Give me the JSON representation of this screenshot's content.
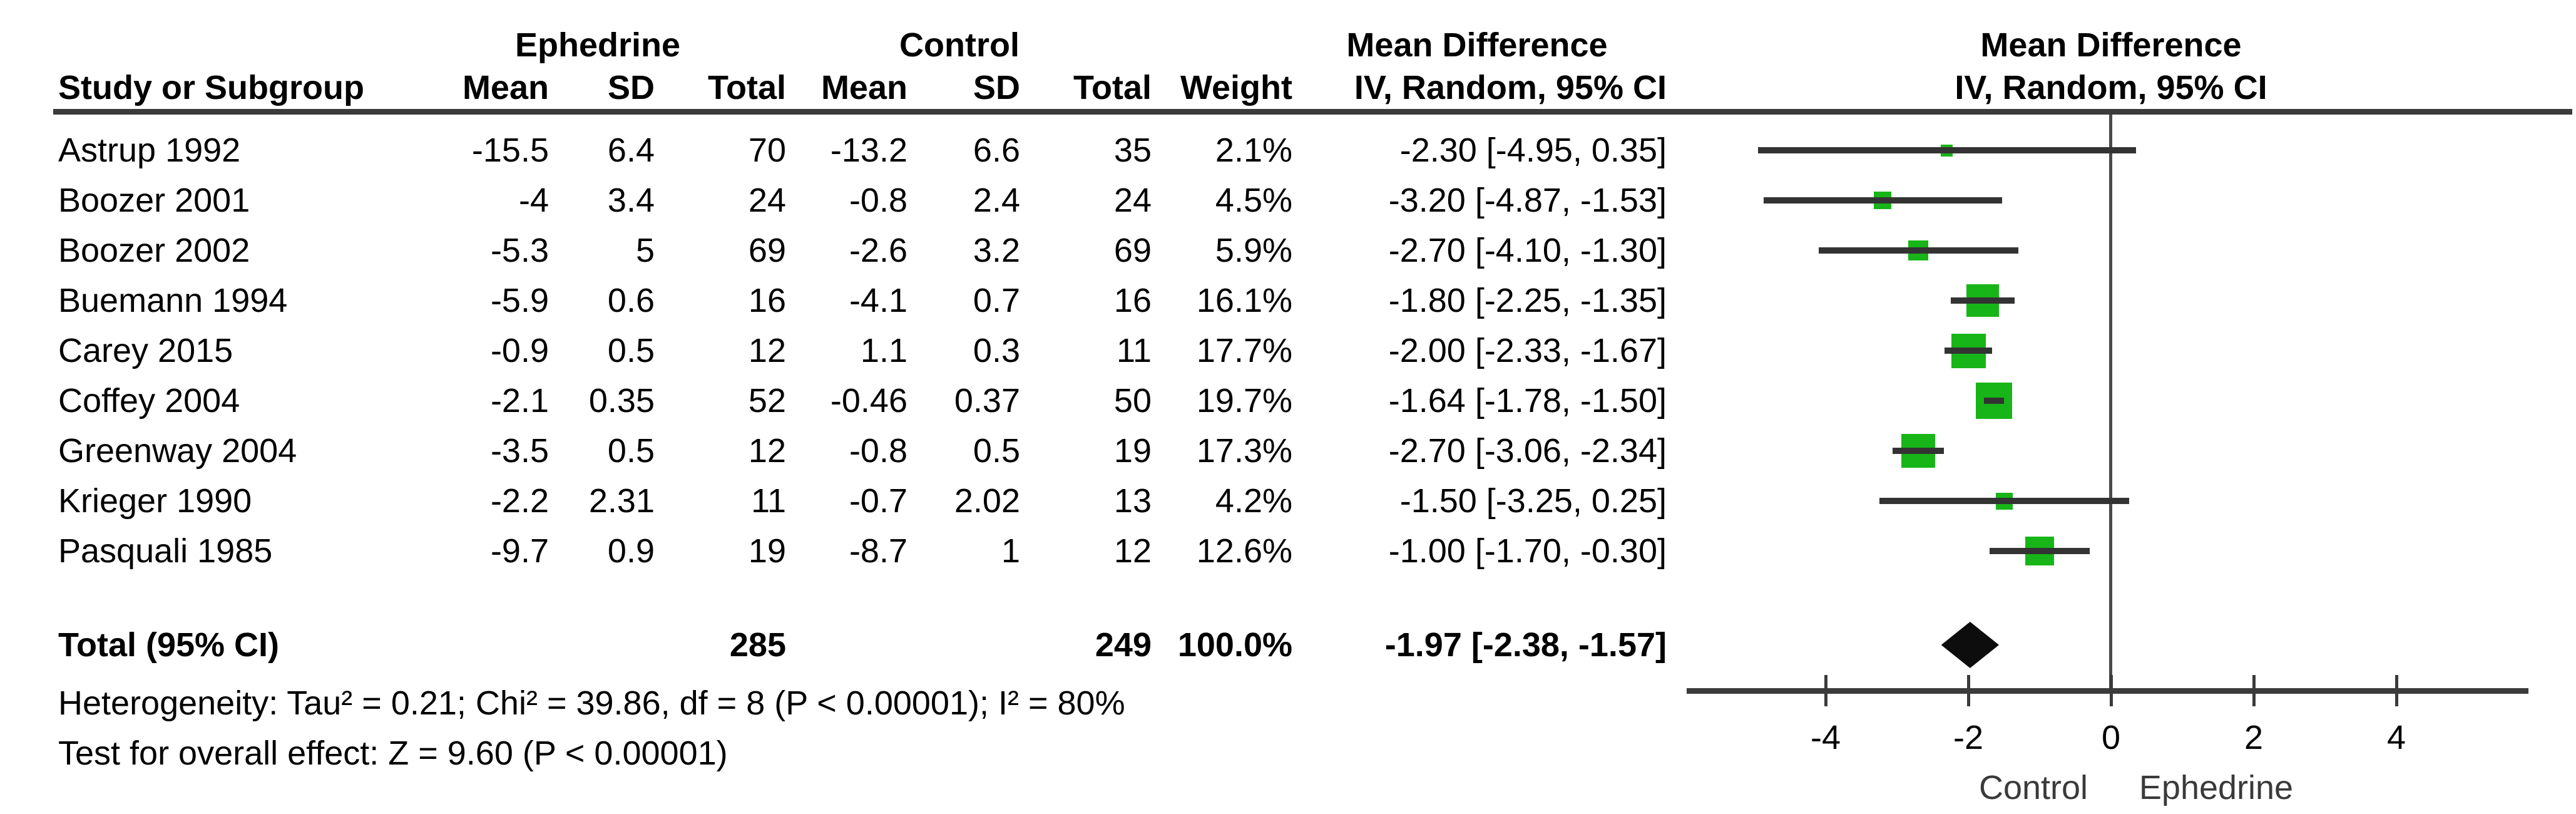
{
  "table": {
    "group1_header": "Ephedrine",
    "group2_header": "Control",
    "md_header": "Mean Difference",
    "study_col_header": "Study or Subgroup",
    "subcols": [
      "Mean",
      "SD",
      "Total",
      "Mean",
      "SD",
      "Total",
      "Weight",
      "IV, Random, 95% CI"
    ],
    "plot_md_header": "Mean Difference",
    "plot_method_header": "IV, Random, 95% CI"
  },
  "chart_data": {
    "type": "forest",
    "effect_measure": "Mean Difference",
    "method": "IV, Random, 95% CI",
    "studies": [
      {
        "name": "Astrup 1992",
        "exp_mean": "-15.5",
        "exp_sd": "6.4",
        "exp_total": "70",
        "ctl_mean": "-13.2",
        "ctl_sd": "6.6",
        "ctl_total": "35",
        "weight": "2.1%",
        "ci_text": "-2.30 [-4.95, 0.35]",
        "md": -2.3,
        "lo": -4.95,
        "hi": 0.35
      },
      {
        "name": "Boozer 2001",
        "exp_mean": "-4",
        "exp_sd": "3.4",
        "exp_total": "24",
        "ctl_mean": "-0.8",
        "ctl_sd": "2.4",
        "ctl_total": "24",
        "weight": "4.5%",
        "ci_text": "-3.20 [-4.87, -1.53]",
        "md": -3.2,
        "lo": -4.87,
        "hi": -1.53
      },
      {
        "name": "Boozer 2002",
        "exp_mean": "-5.3",
        "exp_sd": "5",
        "exp_total": "69",
        "ctl_mean": "-2.6",
        "ctl_sd": "3.2",
        "ctl_total": "69",
        "weight": "5.9%",
        "ci_text": "-2.70 [-4.10, -1.30]",
        "md": -2.7,
        "lo": -4.1,
        "hi": -1.3
      },
      {
        "name": "Buemann 1994",
        "exp_mean": "-5.9",
        "exp_sd": "0.6",
        "exp_total": "16",
        "ctl_mean": "-4.1",
        "ctl_sd": "0.7",
        "ctl_total": "16",
        "weight": "16.1%",
        "ci_text": "-1.80 [-2.25, -1.35]",
        "md": -1.8,
        "lo": -2.25,
        "hi": -1.35
      },
      {
        "name": "Carey 2015",
        "exp_mean": "-0.9",
        "exp_sd": "0.5",
        "exp_total": "12",
        "ctl_mean": "1.1",
        "ctl_sd": "0.3",
        "ctl_total": "11",
        "weight": "17.7%",
        "ci_text": "-2.00 [-2.33, -1.67]",
        "md": -2.0,
        "lo": -2.33,
        "hi": -1.67
      },
      {
        "name": "Coffey 2004",
        "exp_mean": "-2.1",
        "exp_sd": "0.35",
        "exp_total": "52",
        "ctl_mean": "-0.46",
        "ctl_sd": "0.37",
        "ctl_total": "50",
        "weight": "19.7%",
        "ci_text": "-1.64 [-1.78, -1.50]",
        "md": -1.64,
        "lo": -1.78,
        "hi": -1.5
      },
      {
        "name": "Greenway 2004",
        "exp_mean": "-3.5",
        "exp_sd": "0.5",
        "exp_total": "12",
        "ctl_mean": "-0.8",
        "ctl_sd": "0.5",
        "ctl_total": "19",
        "weight": "17.3%",
        "ci_text": "-2.70 [-3.06, -2.34]",
        "md": -2.7,
        "lo": -3.06,
        "hi": -2.34
      },
      {
        "name": "Krieger 1990",
        "exp_mean": "-2.2",
        "exp_sd": "2.31",
        "exp_total": "11",
        "ctl_mean": "-0.7",
        "ctl_sd": "2.02",
        "ctl_total": "13",
        "weight": "4.2%",
        "ci_text": "-1.50 [-3.25, 0.25]",
        "md": -1.5,
        "lo": -3.25,
        "hi": 0.25
      },
      {
        "name": "Pasquali 1985",
        "exp_mean": "-9.7",
        "exp_sd": "0.9",
        "exp_total": "19",
        "ctl_mean": "-8.7",
        "ctl_sd": "1",
        "ctl_total": "12",
        "weight": "12.6%",
        "ci_text": "-1.00 [-1.70, -0.30]",
        "md": -1.0,
        "lo": -1.7,
        "hi": -0.3
      }
    ],
    "total": {
      "label": "Total (95% CI)",
      "exp_total": "285",
      "ctl_total": "249",
      "weight": "100.0%",
      "ci_text": "-1.97 [-2.38, -1.57]",
      "md": -1.97,
      "lo": -2.38,
      "hi": -1.57
    },
    "heterogeneity": "Heterogeneity: Tau² = 0.21; Chi² = 39.86, df = 8 (P < 0.00001); I² = 80%",
    "overall_effect": "Test for overall effect: Z = 9.60 (P < 0.00001)",
    "axis": {
      "ticks": [
        -4,
        -2,
        0,
        2,
        4
      ],
      "min": -5.9,
      "max": 5.9,
      "left_label": "Control",
      "right_label": "Ephedrine"
    },
    "colors": {
      "marker": "#17b517",
      "diamond": "#0d0d0d",
      "ci_line": "#333333",
      "axis_line": "#3b3b3b"
    }
  }
}
